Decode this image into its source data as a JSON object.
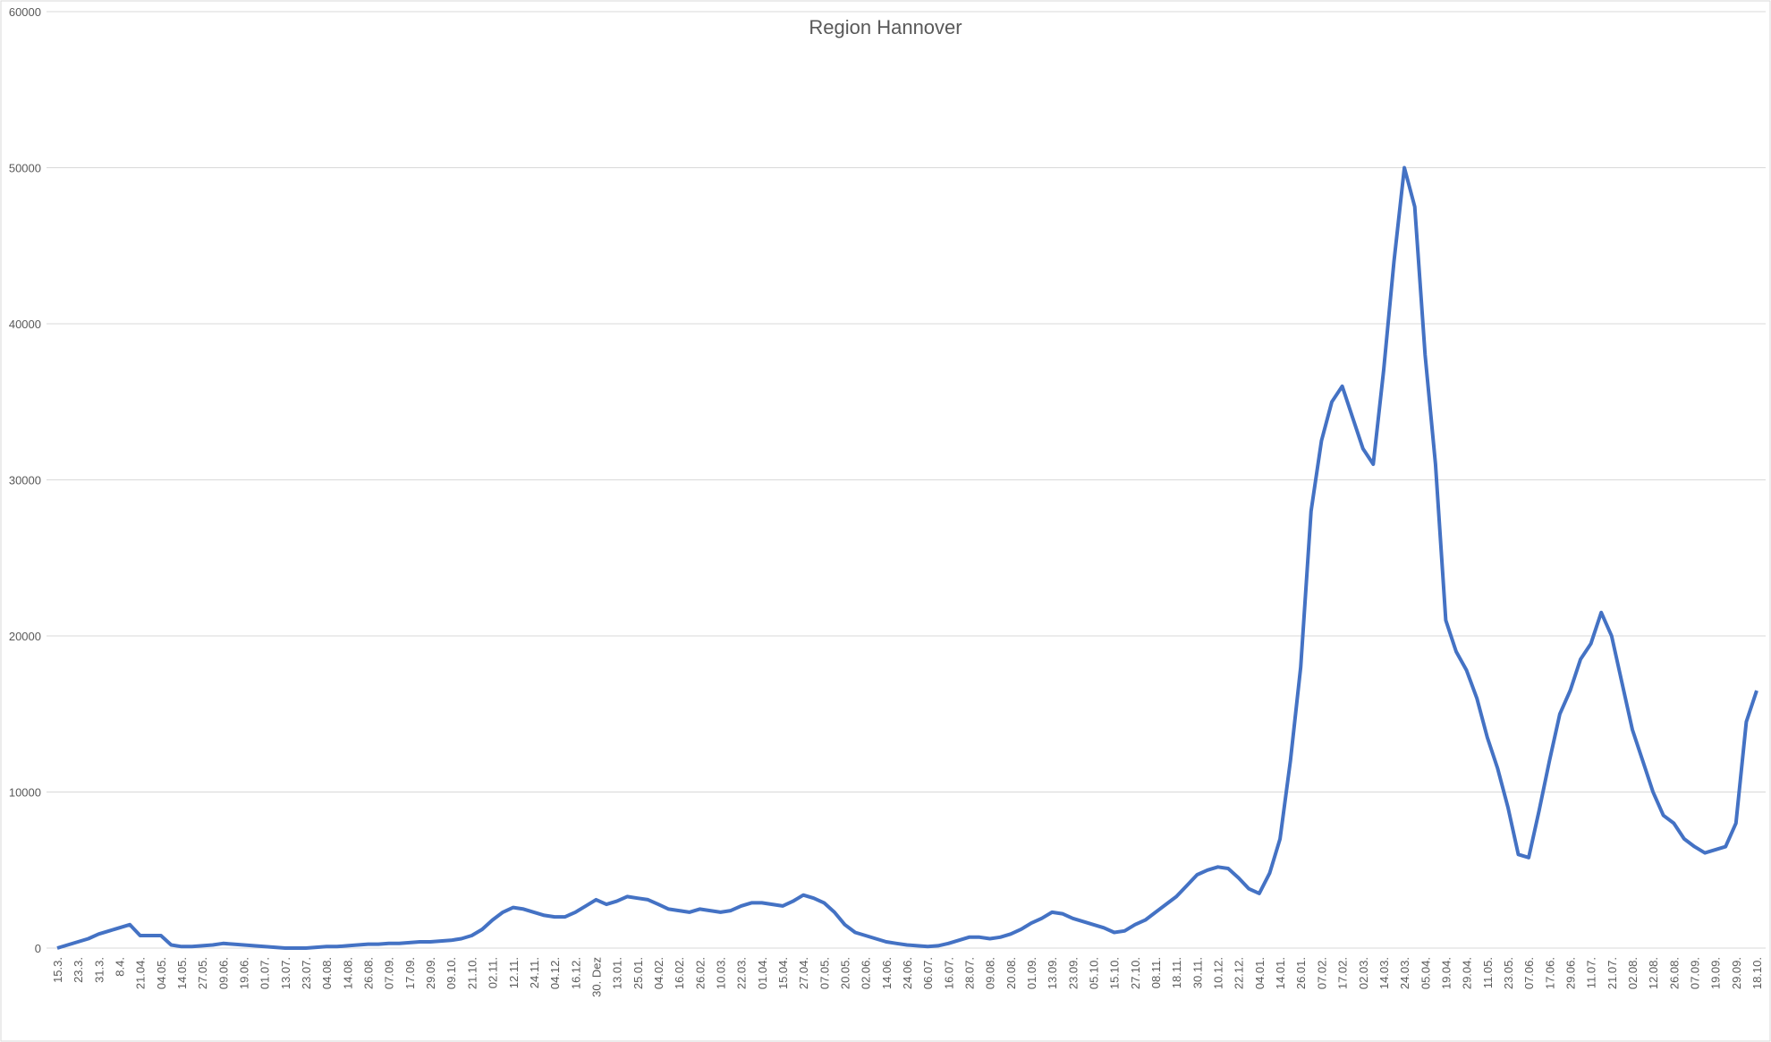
{
  "chart_data": {
    "type": "line",
    "title": "Region Hannover",
    "categories": [
      "15.3.",
      null,
      "23.3.",
      null,
      "31.3.",
      null,
      "8.4.",
      null,
      "21.04.",
      null,
      "04.05.",
      null,
      "14.05.",
      null,
      "27.05.",
      null,
      "09.06.",
      null,
      "19.06.",
      null,
      "01.07.",
      null,
      "13.07.",
      null,
      "23.07.",
      null,
      "04.08.",
      null,
      "14.08.",
      null,
      "26.08.",
      null,
      "07.09.",
      null,
      "17.09.",
      null,
      "29.09.",
      null,
      "09.10.",
      null,
      "21.10.",
      null,
      "02.11.",
      null,
      "12.11.",
      null,
      "24.11.",
      null,
      "04.12.",
      null,
      "16.12.",
      null,
      "30. Dez",
      null,
      "13.01.",
      null,
      "25.01.",
      null,
      "04.02.",
      null,
      "16.02.",
      null,
      "26.02.",
      null,
      "10.03.",
      null,
      "22.03.",
      null,
      "01.04.",
      null,
      "15.04.",
      null,
      "27.04.",
      null,
      "07.05.",
      null,
      "20.05.",
      null,
      "02.06.",
      null,
      "14.06.",
      null,
      "24.06.",
      null,
      "06.07.",
      null,
      "16.07.",
      null,
      "28.07.",
      null,
      "09.08.",
      null,
      "20.08.",
      null,
      "01.09.",
      null,
      "13.09.",
      null,
      "23.09.",
      null,
      "05.10.",
      null,
      "15.10.",
      null,
      "27.10.",
      null,
      "08.11.",
      null,
      "18.11.",
      null,
      "30.11.",
      null,
      "10.12.",
      null,
      "22.12.",
      null,
      "04.01.",
      null,
      "14.01.",
      null,
      "26.01.",
      null,
      "07.02.",
      null,
      "17.02.",
      null,
      "02.03.",
      null,
      "14.03.",
      null,
      "24.03.",
      null,
      "05.04.",
      null,
      "19.04.",
      null,
      "29.04.",
      null,
      "11.05.",
      null,
      "23.05.",
      null,
      "07.06.",
      null,
      "17.06.",
      null,
      "29.06.",
      null,
      "11.07.",
      null,
      "21.07.",
      null,
      "02.08.",
      null,
      "12.08.",
      null,
      "26.08.",
      null,
      "07.09.",
      null,
      "19.09.",
      null,
      "29.09.",
      null,
      "18.10."
    ],
    "series": [
      {
        "name": "Region Hannover",
        "color": "#4472c4",
        "values": [
          0,
          200,
          400,
          600,
          900,
          1100,
          1300,
          1500,
          800,
          800,
          800,
          200,
          100,
          100,
          150,
          200,
          300,
          250,
          200,
          150,
          100,
          50,
          0,
          0,
          0,
          50,
          100,
          100,
          150,
          200,
          250,
          250,
          300,
          300,
          350,
          400,
          400,
          450,
          500,
          600,
          800,
          1200,
          1800,
          2300,
          2600,
          2500,
          2300,
          2100,
          2000,
          2000,
          2300,
          2700,
          3100,
          2800,
          3000,
          3300,
          3200,
          3100,
          2800,
          2500,
          2400,
          2300,
          2500,
          2400,
          2300,
          2400,
          2700,
          2900,
          2900,
          2800,
          2700,
          3000,
          3400,
          3200,
          2900,
          2300,
          1500,
          1000,
          800,
          600,
          400,
          300,
          200,
          150,
          100,
          150,
          300,
          500,
          700,
          700,
          600,
          700,
          900,
          1200,
          1600,
          1900,
          2300,
          2200,
          1900,
          1700,
          1500,
          1300,
          1000,
          1100,
          1500,
          1800,
          2300,
          2800,
          3300,
          4000,
          4700,
          5000,
          5200,
          5100,
          4500,
          3800,
          3500,
          4800,
          7000,
          12000,
          18000,
          28000,
          32500,
          35000,
          36000,
          34000,
          32000,
          31000,
          37000,
          44000,
          50000,
          47500,
          38000,
          31000,
          21000,
          19000,
          17800,
          16000,
          13500,
          11500,
          9000,
          6000,
          5800,
          8800,
          12000,
          15000,
          16500,
          18500,
          19500,
          21500,
          20000,
          17000,
          14000,
          12000,
          10000,
          8500,
          8000,
          7000,
          6500,
          6100,
          6300,
          6500,
          8000,
          14500,
          16500
        ]
      }
    ],
    "ylim": [
      0,
      60000
    ],
    "yticks": [
      0,
      10000,
      20000,
      30000,
      40000,
      50000,
      60000
    ],
    "grid": true
  }
}
